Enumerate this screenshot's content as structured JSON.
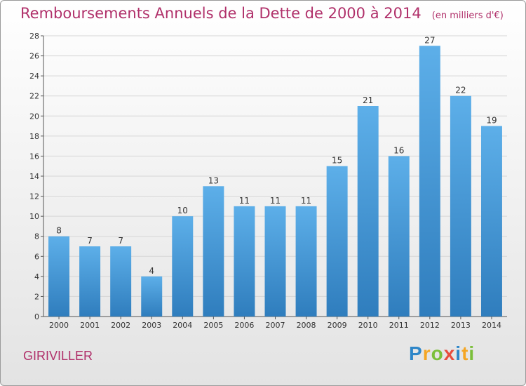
{
  "header": {
    "title": "Remboursements Annuels de la Dette de 2000 à 2014",
    "unit": "(en milliers d'€)"
  },
  "footer": {
    "commune": "GIRIVILLER",
    "logo_text": "Proxiti"
  },
  "colors": {
    "title": "#b0306a",
    "bar_top": "#5dafe9",
    "bar_bottom": "#2f7dbd"
  },
  "chart_data": {
    "type": "bar",
    "categories": [
      "2000",
      "2001",
      "2002",
      "2003",
      "2004",
      "2005",
      "2006",
      "2007",
      "2008",
      "2009",
      "2010",
      "2011",
      "2012",
      "2013",
      "2014"
    ],
    "values": [
      8,
      7,
      7,
      4,
      10,
      13,
      11,
      11,
      11,
      15,
      21,
      16,
      27,
      22,
      19
    ],
    "title": "Remboursements Annuels de la Dette de 2000 à 2014",
    "xlabel": "",
    "ylabel": "",
    "ylim": [
      0,
      28
    ],
    "yticks": [
      0,
      2,
      4,
      6,
      8,
      10,
      12,
      14,
      16,
      18,
      20,
      22,
      24,
      26,
      28
    ],
    "grid": true,
    "data_labels": true
  }
}
